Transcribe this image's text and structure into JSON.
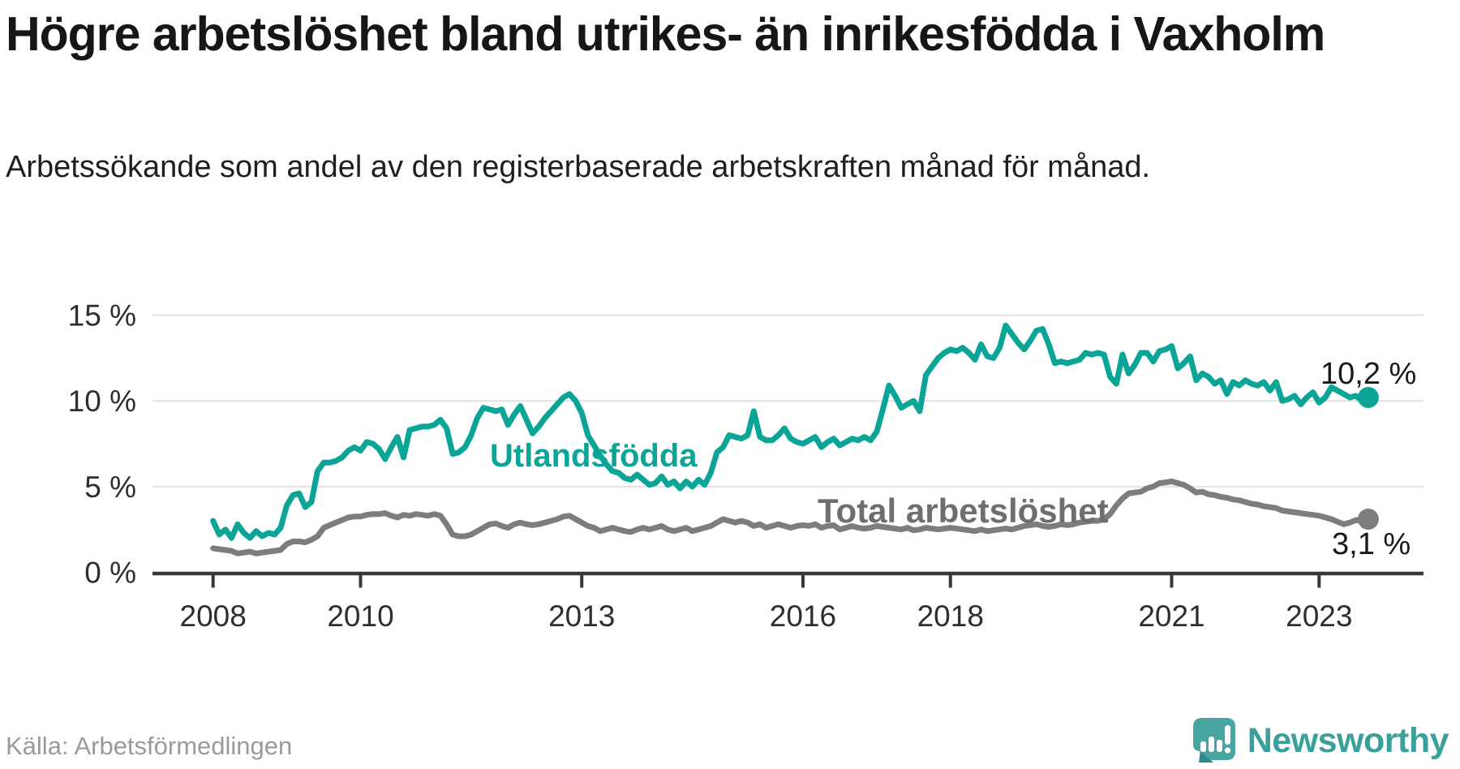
{
  "header": {
    "title": "Högre arbetslöshet bland utrikes- än inrikesfödda i Vaxholm",
    "subtitle": "Arbetssökande som andel av den registerbaserade arbetskraften månad för månad."
  },
  "footer": {
    "source": "Källa: Arbetsförmedlingen",
    "brand": "Newsworthy",
    "brand_color": "#3aa09c",
    "logo_bubble_color": "#47a5a2",
    "logo_tail_color": "#2d8a88"
  },
  "chart_data": {
    "type": "line",
    "title": "Högre arbetslöshet bland utrikes- än inrikesfödda i Vaxholm",
    "xlabel": "",
    "ylabel": "",
    "grid": true,
    "legend": "inline-labels",
    "x_start_year": 2008,
    "points_per_year": 12,
    "ylim": [
      0,
      16
    ],
    "y_axis": {
      "tick_values": [
        0,
        5,
        10,
        15
      ],
      "tick_labels": [
        "0 %",
        "5 %",
        "10 %",
        "15 %"
      ]
    },
    "x_axis": {
      "tick_values": [
        2008,
        2010,
        2013,
        2016,
        2018,
        2021,
        2023
      ],
      "tick_labels": [
        "2008",
        "2010",
        "2013",
        "2016",
        "2018",
        "2021",
        "2023"
      ]
    },
    "series": [
      {
        "name": "Utlandsfödda",
        "color": "#0ba597",
        "end_label": "10,2 %",
        "end_value": 10.2,
        "values": [
          3.0,
          2.2,
          2.5,
          2.0,
          2.8,
          2.3,
          2.0,
          2.4,
          2.1,
          2.3,
          2.2,
          2.6,
          3.9,
          4.5,
          4.6,
          3.8,
          4.1,
          5.9,
          6.4,
          6.4,
          6.5,
          6.7,
          7.1,
          7.3,
          7.1,
          7.6,
          7.5,
          7.2,
          6.6,
          7.3,
          7.9,
          6.7,
          8.3,
          8.4,
          8.5,
          8.5,
          8.6,
          8.9,
          8.4,
          6.9,
          7.0,
          7.3,
          8.0,
          9.0,
          9.6,
          9.5,
          9.4,
          9.5,
          8.6,
          9.2,
          9.7,
          8.9,
          8.1,
          8.5,
          9.0,
          9.4,
          9.8,
          10.2,
          10.4,
          10.0,
          9.3,
          8.0,
          7.4,
          6.8,
          6.3,
          5.9,
          5.8,
          5.5,
          5.4,
          5.7,
          5.4,
          5.1,
          5.2,
          5.6,
          5.1,
          5.3,
          4.9,
          5.3,
          5.0,
          5.4,
          5.1,
          5.8,
          7.0,
          7.3,
          8.0,
          7.9,
          7.8,
          8.0,
          9.4,
          7.9,
          7.7,
          7.7,
          8.0,
          8.4,
          7.8,
          7.6,
          7.5,
          7.7,
          7.9,
          7.3,
          7.6,
          7.8,
          7.4,
          7.6,
          7.8,
          7.7,
          7.9,
          7.7,
          8.2,
          9.5,
          10.9,
          10.3,
          9.6,
          9.8,
          10.0,
          9.4,
          11.5,
          12.0,
          12.5,
          12.8,
          13.0,
          12.9,
          13.1,
          12.8,
          12.4,
          13.3,
          12.6,
          12.5,
          13.1,
          14.4,
          13.9,
          13.4,
          13.0,
          13.5,
          14.1,
          14.2,
          13.3,
          12.2,
          12.3,
          12.2,
          12.3,
          12.4,
          12.8,
          12.7,
          12.8,
          12.7,
          11.4,
          11.0,
          12.7,
          11.6,
          12.1,
          12.8,
          12.8,
          12.3,
          12.9,
          13.0,
          13.2,
          11.9,
          12.2,
          12.6,
          11.2,
          11.6,
          11.4,
          11.0,
          11.2,
          10.4,
          11.1,
          10.9,
          11.2,
          11.0,
          10.9,
          11.1,
          10.6,
          11.1,
          10.0,
          10.1,
          10.3,
          9.8,
          10.2,
          10.5,
          9.9,
          10.2,
          10.8,
          10.6,
          10.4,
          10.2,
          10.3,
          10.0,
          10.2
        ]
      },
      {
        "name": "Total arbetslöshet",
        "color": "#7d7d7d",
        "label_color": "#6e6e6e",
        "end_label": "3,1 %",
        "end_value": 3.1,
        "values": [
          1.4,
          1.35,
          1.3,
          1.25,
          1.1,
          1.15,
          1.2,
          1.1,
          1.15,
          1.2,
          1.25,
          1.3,
          1.65,
          1.8,
          1.8,
          1.75,
          1.9,
          2.1,
          2.6,
          2.75,
          2.9,
          3.05,
          3.2,
          3.25,
          3.25,
          3.35,
          3.4,
          3.4,
          3.45,
          3.3,
          3.2,
          3.35,
          3.3,
          3.4,
          3.35,
          3.3,
          3.4,
          3.3,
          2.8,
          2.2,
          2.1,
          2.1,
          2.2,
          2.4,
          2.6,
          2.8,
          2.85,
          2.7,
          2.6,
          2.8,
          2.9,
          2.8,
          2.75,
          2.8,
          2.9,
          3.0,
          3.1,
          3.25,
          3.3,
          3.1,
          2.9,
          2.7,
          2.6,
          2.4,
          2.5,
          2.6,
          2.5,
          2.4,
          2.35,
          2.5,
          2.6,
          2.5,
          2.6,
          2.7,
          2.5,
          2.4,
          2.5,
          2.6,
          2.4,
          2.5,
          2.6,
          2.7,
          2.9,
          3.1,
          3.0,
          2.9,
          3.0,
          2.9,
          2.7,
          2.8,
          2.6,
          2.7,
          2.8,
          2.7,
          2.6,
          2.7,
          2.75,
          2.7,
          2.8,
          2.6,
          2.7,
          2.75,
          2.5,
          2.6,
          2.7,
          2.6,
          2.55,
          2.6,
          2.7,
          2.65,
          2.6,
          2.55,
          2.5,
          2.6,
          2.45,
          2.5,
          2.6,
          2.55,
          2.5,
          2.55,
          2.6,
          2.55,
          2.5,
          2.45,
          2.4,
          2.5,
          2.4,
          2.45,
          2.5,
          2.55,
          2.5,
          2.6,
          2.7,
          2.75,
          2.8,
          2.7,
          2.65,
          2.7,
          2.8,
          2.75,
          2.8,
          2.9,
          2.95,
          3.0,
          3.0,
          3.1,
          3.4,
          3.9,
          4.3,
          4.6,
          4.65,
          4.7,
          4.9,
          5.0,
          5.2,
          5.25,
          5.3,
          5.2,
          5.1,
          4.9,
          4.65,
          4.7,
          4.55,
          4.5,
          4.4,
          4.35,
          4.25,
          4.2,
          4.1,
          4.0,
          3.95,
          3.85,
          3.8,
          3.75,
          3.6,
          3.55,
          3.5,
          3.45,
          3.4,
          3.35,
          3.3,
          3.2,
          3.1,
          2.95,
          2.8,
          2.9,
          3.05,
          3.0,
          3.1
        ]
      }
    ]
  }
}
